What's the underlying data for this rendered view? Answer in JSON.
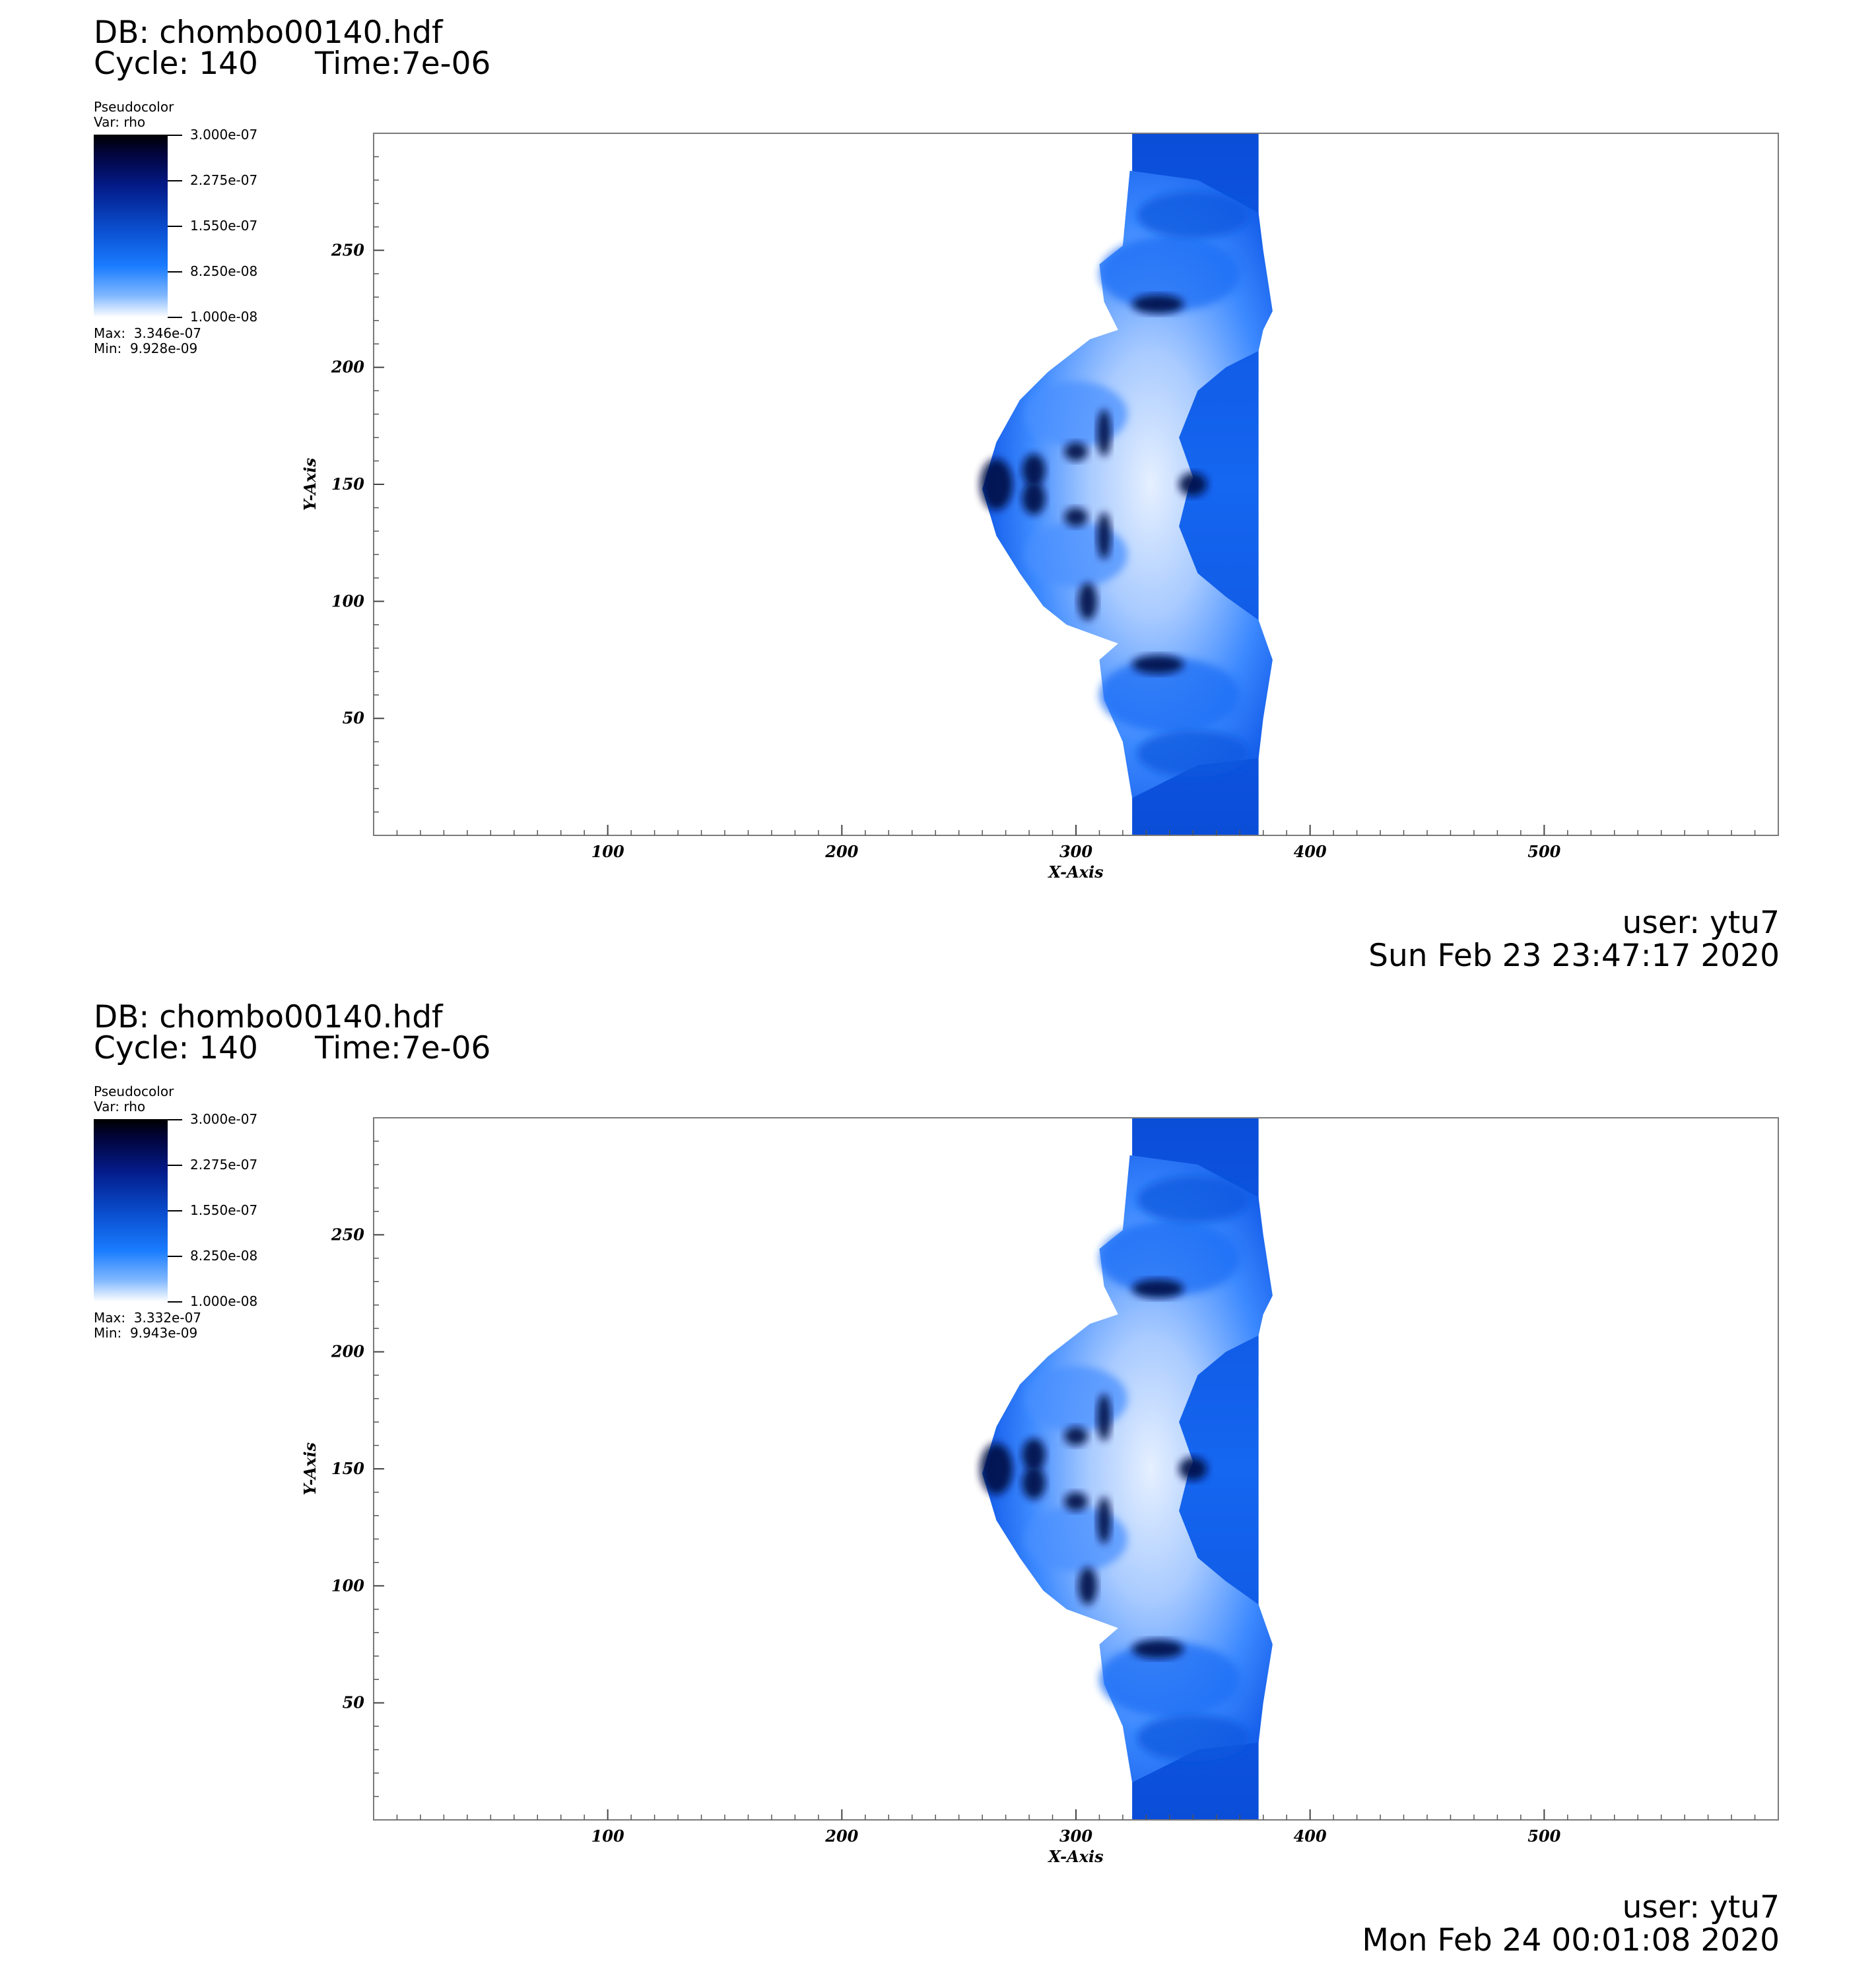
{
  "panels": [
    {
      "db_label": "DB: chombo00140.hdf",
      "cycle_label": "Cycle: 140",
      "time_label": "Time:7e-06",
      "legend": {
        "plot_type": "Pseudocolor",
        "var": "Var: rho",
        "ticks": [
          "3.000e-07",
          "2.275e-07",
          "1.550e-07",
          "8.250e-08",
          "1.000e-08"
        ],
        "max": "Max:  3.346e-07",
        "min": "Min:  9.928e-09"
      },
      "user": "user: ytu7",
      "date": "Sun Feb 23 23:47:17 2020"
    },
    {
      "db_label": "DB: chombo00140.hdf",
      "cycle_label": "Cycle: 140",
      "time_label": "Time:7e-06",
      "legend": {
        "plot_type": "Pseudocolor",
        "var": "Var: rho",
        "ticks": [
          "3.000e-07",
          "2.275e-07",
          "1.550e-07",
          "8.250e-08",
          "1.000e-08"
        ],
        "max": "Max:  3.332e-07",
        "min": "Min:  9.943e-09"
      },
      "user": "user: ytu7",
      "date": "Mon Feb 24 00:01:08 2020"
    }
  ],
  "chart_data": [
    {
      "type": "heatmap",
      "variable": "rho",
      "xlabel": "X-Axis",
      "ylabel": "Y-Axis",
      "xlim": [
        0,
        600
      ],
      "ylim": [
        0,
        300
      ],
      "x_ticks": [
        100,
        200,
        300,
        400,
        500
      ],
      "y_ticks": [
        50,
        100,
        150,
        200,
        250
      ],
      "color_range": [
        1e-08,
        3e-07
      ],
      "colormap": [
        "#ffffff",
        "#1a7cff",
        "#0a4fd0",
        "#031a88",
        "#000000"
      ],
      "grid": false
    },
    {
      "type": "heatmap",
      "variable": "rho",
      "xlabel": "X-Axis",
      "ylabel": "Y-Axis",
      "xlim": [
        0,
        600
      ],
      "ylim": [
        0,
        300
      ],
      "x_ticks": [
        100,
        200,
        300,
        400,
        500
      ],
      "y_ticks": [
        50,
        100,
        150,
        200,
        250
      ],
      "color_range": [
        1e-08,
        3e-07
      ],
      "colormap": [
        "#ffffff",
        "#1a7cff",
        "#0a4fd0",
        "#031a88",
        "#000000"
      ],
      "grid": false
    }
  ]
}
